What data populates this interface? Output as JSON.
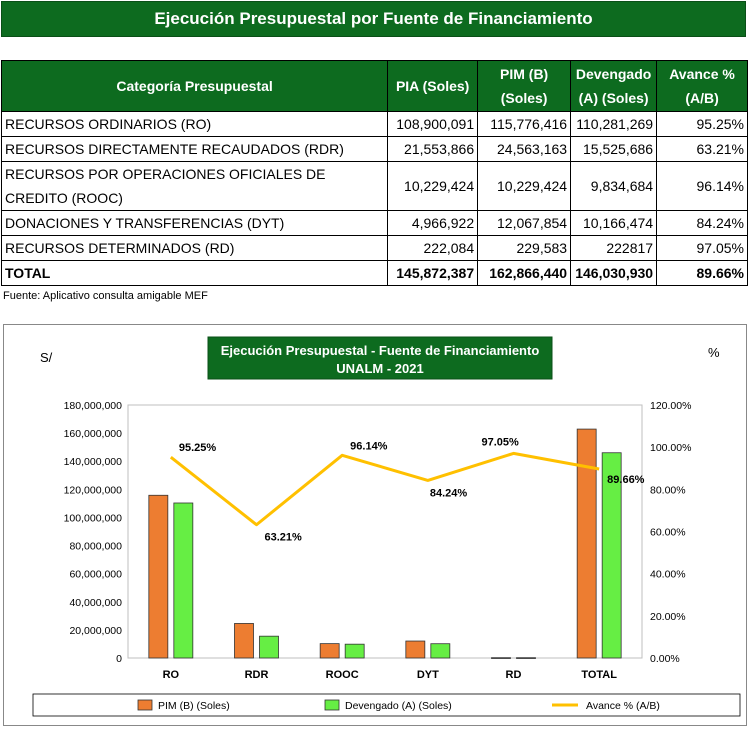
{
  "header": {
    "title": "Ejecución Presupuestal por Fuente de Financiamiento"
  },
  "table": {
    "columns": [
      [
        "Categoría Presupuestal"
      ],
      [
        "PIA (Soles)"
      ],
      [
        "PIM (B)",
        "(Soles)"
      ],
      [
        "Devengado",
        "(A) (Soles)"
      ],
      [
        "Avance %",
        "(A/B)"
      ]
    ],
    "rows": [
      {
        "category": [
          "RECURSOS ORDINARIOS (RO)"
        ],
        "pia": "108,900,091",
        "pim": "115,776,416",
        "devengado": "110,281,269",
        "avance": "95.25%"
      },
      {
        "category": [
          "RECURSOS DIRECTAMENTE RECAUDADOS (RDR)"
        ],
        "pia": "21,553,866",
        "pim": "24,563,163",
        "devengado": "15,525,686",
        "avance": "63.21%"
      },
      {
        "category": [
          "RECURSOS POR OPERACIONES OFICIALES DE",
          "CREDITO (ROOC)"
        ],
        "pia": "10,229,424",
        "pim": "10,229,424",
        "devengado": "9,834,684",
        "avance": "96.14%"
      },
      {
        "category": [
          "DONACIONES Y TRANSFERENCIAS (DYT)"
        ],
        "pia": "4,966,922",
        "pim": "12,067,854",
        "devengado": "10,166,474",
        "avance": "84.24%"
      },
      {
        "category": [
          "RECURSOS DETERMINADOS (RD)"
        ],
        "pia": "222,084",
        "pim": "229,583",
        "devengado": "222817",
        "avance": "97.05%"
      }
    ],
    "total": {
      "category": "TOTAL",
      "pia": "145,872,387",
      "pim": "162,866,440",
      "devengado": "146,030,930",
      "avance": "89.66%"
    }
  },
  "source_note": "Fuente: Aplicativo consulta amigable MEF",
  "chart_data": {
    "type": "bar",
    "title": [
      "Ejecución Presupuestal - Fuente de Financiamiento",
      "UNALM - 2021"
    ],
    "ylabel": "S/",
    "y2label": "%",
    "categories": [
      "RO",
      "RDR",
      "ROOC",
      "DYT",
      "RD",
      "TOTAL"
    ],
    "ylim": [
      0,
      180000000
    ],
    "y_ticks": [
      0,
      20000000,
      40000000,
      60000000,
      80000000,
      100000000,
      120000000,
      140000000,
      160000000,
      180000000
    ],
    "y_tick_labels": [
      "0",
      "20,000,000",
      "40,000,000",
      "60,000,000",
      "80,000,000",
      "100,000,000",
      "120,000,000",
      "140,000,000",
      "160,000,000",
      "180,000,000"
    ],
    "y2lim": [
      0,
      120
    ],
    "y2_ticks": [
      0,
      20,
      40,
      60,
      80,
      100,
      120
    ],
    "y2_tick_labels": [
      "0.00%",
      "20.00%",
      "40.00%",
      "60.00%",
      "80.00%",
      "100.00%",
      "120.00%"
    ],
    "series": [
      {
        "name": "PIM (B) (Soles)",
        "kind": "bar",
        "color": "#ed7d31",
        "values": [
          115776416,
          24563163,
          10229424,
          12067854,
          229583,
          162866440
        ]
      },
      {
        "name": "Devengado (A) (Soles)",
        "kind": "bar",
        "color": "#66ee44",
        "values": [
          110281269,
          15525686,
          9834684,
          10166474,
          222817,
          146030930
        ]
      },
      {
        "name": "Avance % (A/B)",
        "kind": "line",
        "axis": "secondary",
        "color": "#ffc000",
        "values": [
          95.25,
          63.21,
          96.14,
          84.24,
          97.05,
          89.66
        ],
        "labels": [
          "95.25%",
          "63.21%",
          "96.14%",
          "84.24%",
          "97.05%",
          "89.66%"
        ]
      }
    ],
    "legend_position": "bottom"
  },
  "colors": {
    "banner": "#0d6b1f"
  }
}
